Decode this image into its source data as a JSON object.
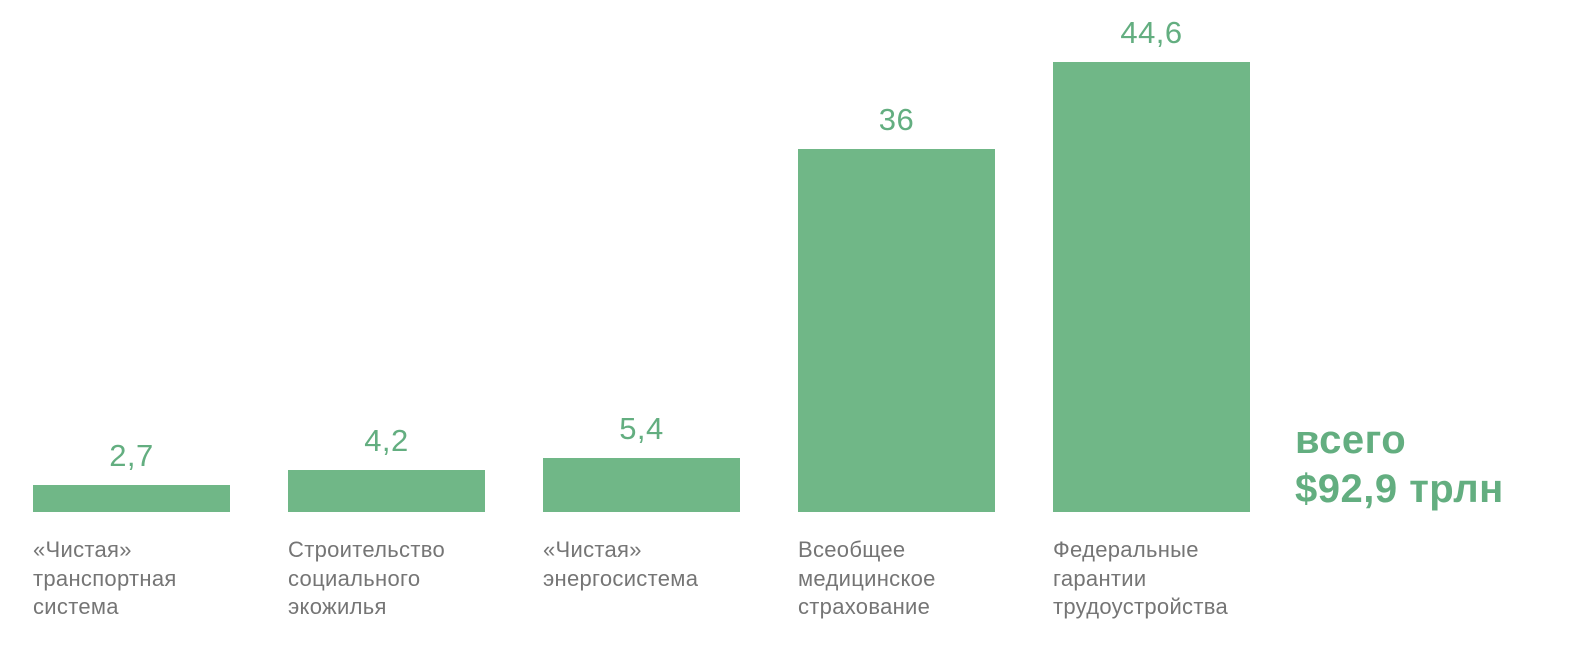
{
  "chart_data": {
    "type": "bar",
    "categories": [
      "«Чистая»\nтранспортная\nсистема",
      "Строительство\nсоциального\nэкожилья",
      "«Чистая»\nэнергосистема",
      "Всеобщее\nмедицинское\nстрахование",
      "Федеральные\nгарантии\nтрудоустройства"
    ],
    "values": [
      2.7,
      4.2,
      5.4,
      36,
      44.6
    ],
    "value_labels": [
      "2,7",
      "4,2",
      "5,4",
      "36",
      "44,6"
    ],
    "total_annotation": "всего\n$92,9 трлн",
    "title": "",
    "xlabel": "",
    "ylabel": "",
    "ylim": [
      0,
      44.6
    ],
    "grid": false,
    "legend": "none",
    "bar_color": "#70b787",
    "value_text_color": "#63ae80",
    "label_text_color": "#757575",
    "total_text_color": "#63ae80"
  }
}
